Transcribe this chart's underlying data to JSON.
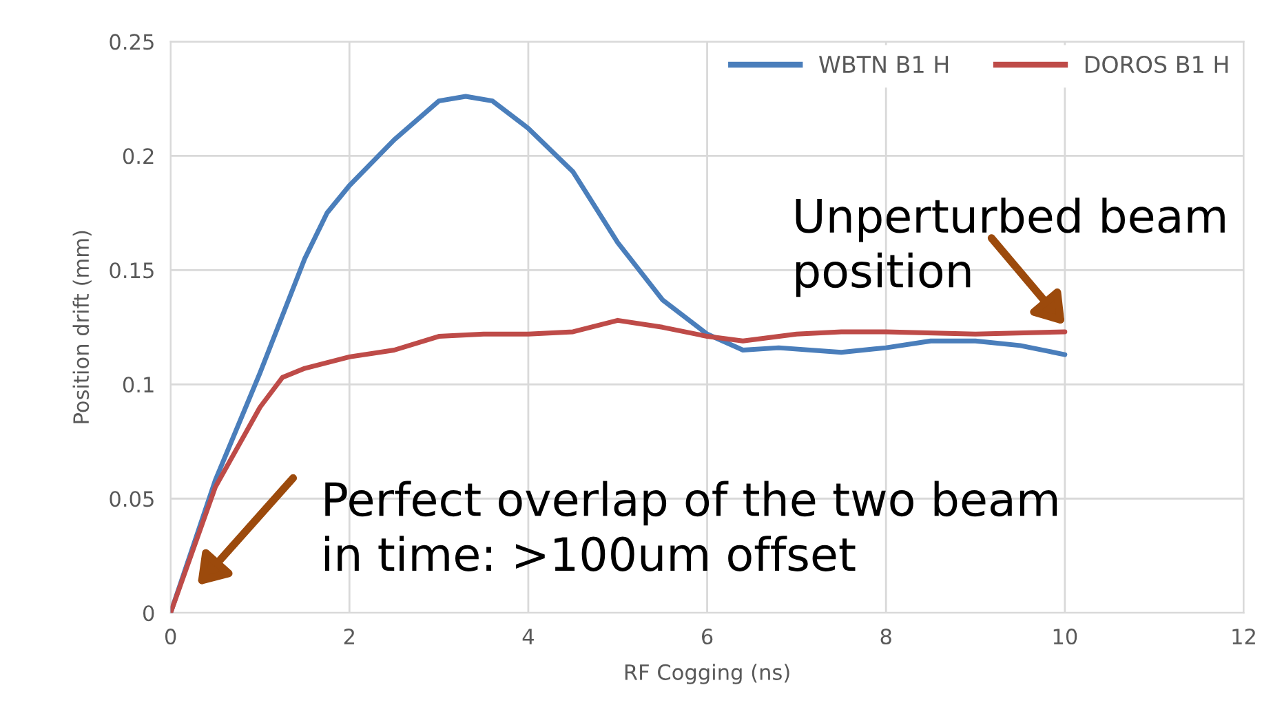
{
  "chart_data": {
    "type": "line",
    "xlabel": "RF Cogging (ns)",
    "ylabel": "Position drift (mm)",
    "xlim": [
      0,
      12
    ],
    "xticks": [
      0,
      2,
      4,
      6,
      8,
      10,
      12
    ],
    "ylim": [
      0,
      0.25
    ],
    "yticks": [
      0,
      0.05,
      0.1,
      0.15,
      0.2,
      0.25
    ],
    "grid": true,
    "legend": "top right",
    "marker": "none",
    "line_style": "solid",
    "series": [
      {
        "name": "WBTN B1 H",
        "color": "#4a7ebb",
        "x": [
          0,
          0.5,
          1,
          1.5,
          1.75,
          2,
          2.5,
          3,
          3.3,
          3.6,
          4,
          4.5,
          5,
          5.5,
          6,
          6.4,
          6.8,
          7.5,
          8,
          8.5,
          9,
          9.5,
          10
        ],
        "values": [
          0,
          0.058,
          0.105,
          0.155,
          0.175,
          0.187,
          0.207,
          0.224,
          0.226,
          0.224,
          0.212,
          0.193,
          0.162,
          0.137,
          0.122,
          0.115,
          0.116,
          0.114,
          0.116,
          0.119,
          0.119,
          0.117,
          0.113
        ]
      },
      {
        "name": "DOROS B1 H",
        "color": "#be4b48",
        "x": [
          0,
          0.5,
          1,
          1.25,
          1.5,
          2,
          2.5,
          3,
          3.5,
          4,
          4.5,
          5,
          5.5,
          6,
          6.4,
          7,
          7.5,
          8,
          9,
          10
        ],
        "values": [
          0,
          0.055,
          0.09,
          0.103,
          0.107,
          0.112,
          0.115,
          0.121,
          0.122,
          0.122,
          0.123,
          0.128,
          0.125,
          0.121,
          0.119,
          0.122,
          0.123,
          0.123,
          0.122,
          0.123
        ]
      }
    ],
    "annotations": [
      "Perfect overlap of the two beam\nin time: >100um offset",
      "Unperturbed beam\nposition"
    ]
  }
}
